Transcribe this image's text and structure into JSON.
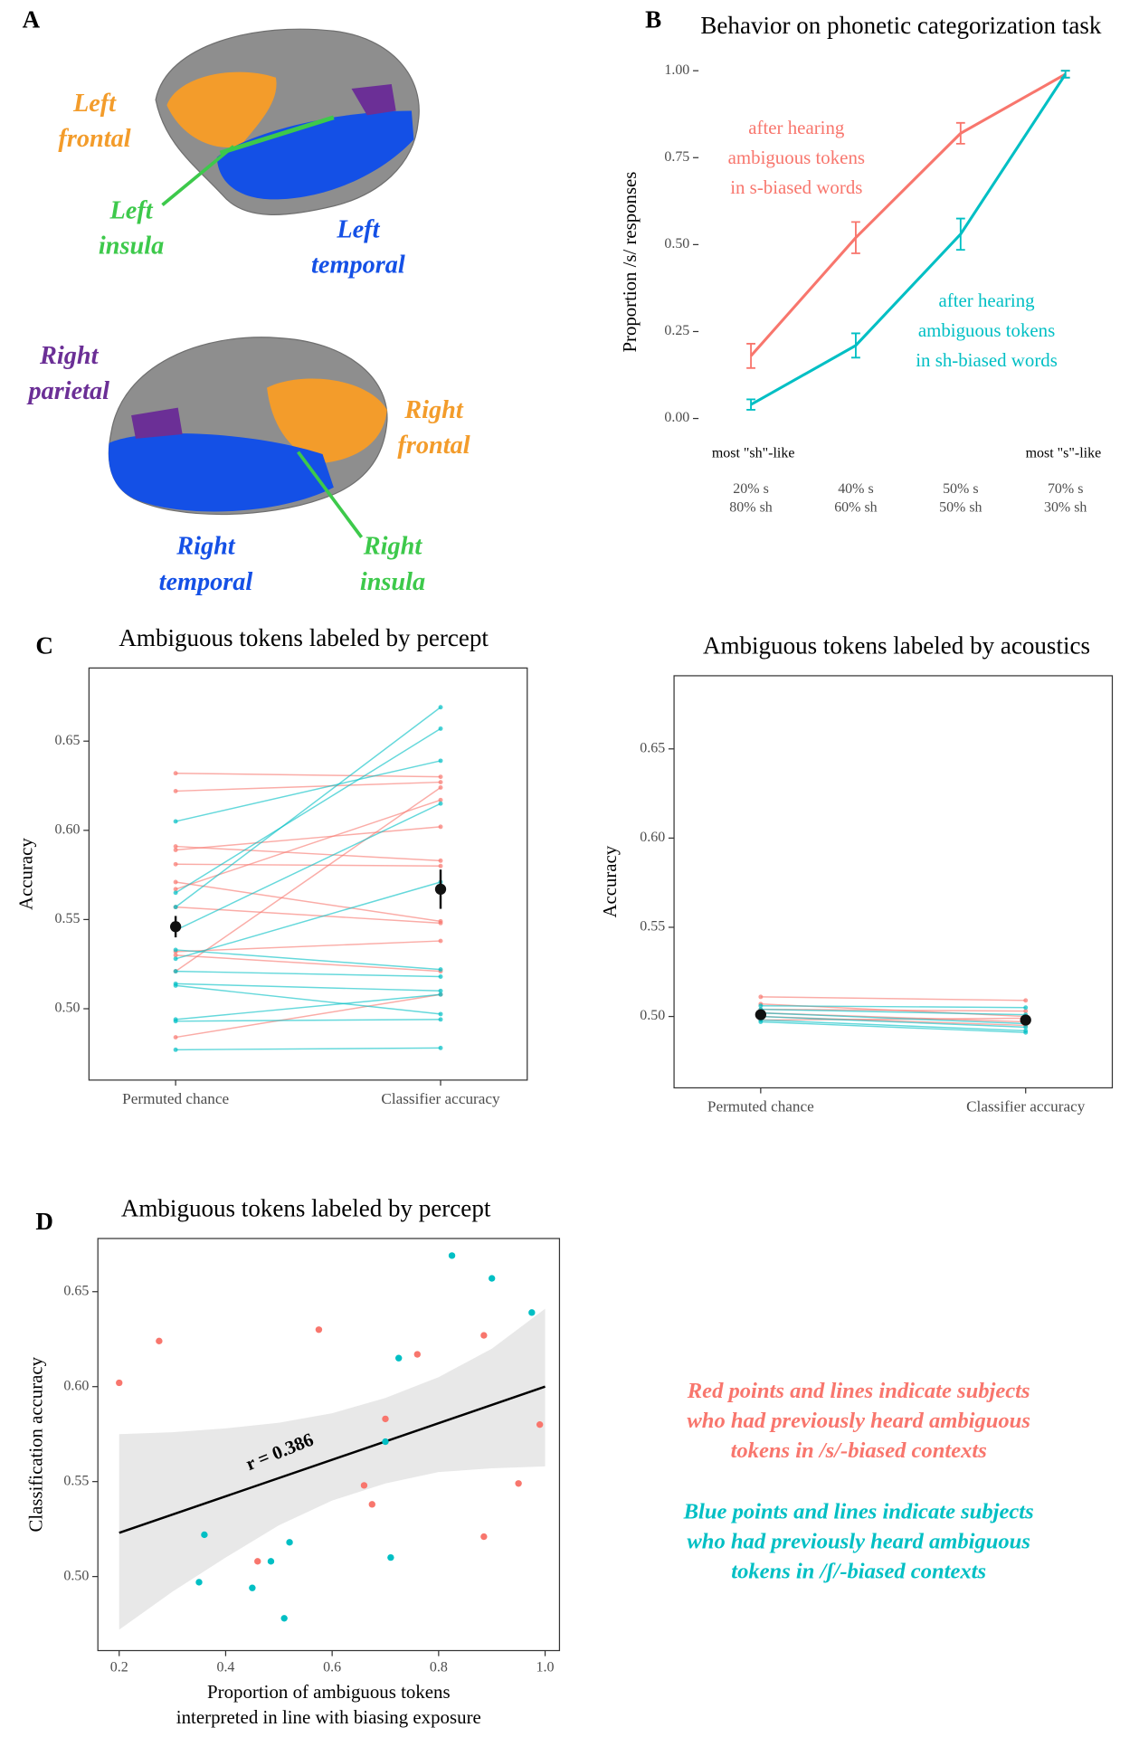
{
  "panel_labels": [
    "A",
    "B",
    "C",
    "D"
  ],
  "brain_labels": [
    {
      "lines": [
        "Left",
        "frontal"
      ],
      "color": "#f39c2b"
    },
    {
      "lines": [
        "Left",
        "insula"
      ],
      "color": "#3dc94b"
    },
    {
      "lines": [
        "Left",
        "temporal"
      ],
      "color": "#1450e6"
    },
    {
      "lines": [
        "Right",
        "parietal"
      ],
      "color": "#6b2f96"
    },
    {
      "lines": [
        "Right",
        "frontal"
      ],
      "color": "#f39c2b"
    },
    {
      "lines": [
        "Right",
        "temporal"
      ],
      "color": "#1450e6"
    },
    {
      "lines": [
        "Right",
        "insula"
      ],
      "color": "#3dc94b"
    }
  ],
  "chart_data": [
    {
      "type": "line",
      "title": "Behavior on phonetic categorization task",
      "y_label": "Proportion /s/ responses",
      "categories": [
        [
          "20% s",
          "80% sh"
        ],
        [
          "40% s",
          "60% sh"
        ],
        [
          "50% s",
          "50% sh"
        ],
        [
          "70% s",
          "30% sh"
        ]
      ],
      "series": [
        {
          "name": [
            "after hearing",
            "ambiguous tokens",
            "in s-biased words"
          ],
          "color": "#F8766D",
          "values": [
            0.18,
            0.52,
            0.82,
            0.99
          ],
          "errors": [
            0.035,
            0.045,
            0.03,
            0.01
          ]
        },
        {
          "name": [
            "after hearing",
            "ambiguous tokens",
            "in sh-biased words"
          ],
          "color": "#00BFC4",
          "values": [
            0.04,
            0.21,
            0.53,
            0.99
          ],
          "errors": [
            0.015,
            0.035,
            0.045,
            0.01
          ]
        }
      ],
      "annotations": [
        "most \"sh\"-like",
        "most \"s\"-like"
      ],
      "ylim": [
        -0.16,
        1.06
      ],
      "yticks": [
        {
          "value": 0,
          "label": "0.00"
        },
        {
          "value": 0.25,
          "label": "0.25"
        },
        {
          "value": 0.5,
          "label": "0.50"
        },
        {
          "value": 0.75,
          "label": "0.75"
        },
        {
          "value": 1,
          "label": "1.00"
        }
      ]
    },
    {
      "type": "slope",
      "title": "Ambiguous tokens labeled by percept",
      "y_label": "Accuracy",
      "categories": [
        "Permuted chance",
        "Classifier accuracy"
      ],
      "series": [
        {
          "color": "#F8766D",
          "chance": [
            0.632,
            0.622,
            0.591,
            0.589,
            0.581,
            0.571,
            0.567,
            0.557,
            0.532,
            0.53,
            0.521,
            0.484
          ],
          "classifier": [
            0.63,
            0.627,
            0.583,
            0.602,
            0.58,
            0.549,
            0.617,
            0.548,
            0.538,
            0.521,
            0.624,
            0.508
          ]
        },
        {
          "color": "#00BFC4",
          "chance": [
            0.605,
            0.565,
            0.557,
            0.544,
            0.528,
            0.533,
            0.521,
            0.514,
            0.513,
            0.494,
            0.493,
            0.477
          ],
          "classifier": [
            0.639,
            0.657,
            0.669,
            0.615,
            0.571,
            0.522,
            0.518,
            0.51,
            0.497,
            0.508,
            0.494,
            0.478
          ]
        }
      ],
      "mean": [
        0.546,
        0.567
      ],
      "mean_error": [
        0.006,
        0.011
      ],
      "ylim": [
        0.46,
        0.691
      ],
      "yticks": [
        {
          "value": 0.5,
          "label": "0.50"
        },
        0.55,
        {
          "value": 0.6,
          "label": "0.60"
        },
        0.65
      ]
    },
    {
      "type": "slope",
      "title": "Ambiguous tokens labeled by acoustics",
      "y_label": "Accuracy",
      "categories": [
        "Permuted chance",
        "Classifier accuracy"
      ],
      "series": [
        {
          "color": "#F8766D",
          "chance": [
            0.511,
            0.507,
            0.504,
            0.502,
            0.5,
            0.498
          ],
          "classifier": [
            0.509,
            0.5,
            0.503,
            0.497,
            0.495,
            0.499
          ]
        },
        {
          "color": "#00BFC4",
          "chance": [
            0.506,
            0.504,
            0.502,
            0.5,
            0.498,
            0.497
          ],
          "classifier": [
            0.505,
            0.501,
            0.496,
            0.494,
            0.492,
            0.491
          ]
        }
      ],
      "mean": [
        0.501,
        0.498
      ],
      "mean_error": [
        0.002,
        0.002
      ],
      "ylim": [
        0.46,
        0.691
      ],
      "yticks": [
        {
          "value": 0.5,
          "label": "0.50"
        },
        0.55,
        {
          "value": 0.6,
          "label": "0.60"
        },
        0.65
      ]
    },
    {
      "type": "scatter",
      "title": "Ambiguous tokens labeled by percept",
      "y_label": "Classification accuracy",
      "x_label": [
        "Proportion of ambiguous tokens",
        "interpreted in line with biasing exposure"
      ],
      "series": [
        {
          "color": "#F8766D",
          "x": [
            0.2,
            0.275,
            0.575,
            0.885,
            0.76,
            0.7,
            0.99,
            0.95,
            0.66,
            0.675,
            0.885,
            0.46
          ],
          "values": [
            0.602,
            0.624,
            0.63,
            0.627,
            0.617,
            0.583,
            0.58,
            0.549,
            0.548,
            0.538,
            0.521,
            0.508
          ]
        },
        {
          "color": "#00BFC4",
          "x": [
            0.825,
            0.9,
            0.975,
            0.725,
            0.7,
            0.36,
            0.52,
            0.485,
            0.71,
            0.35,
            0.45,
            0.51
          ],
          "values": [
            0.669,
            0.657,
            0.639,
            0.615,
            0.571,
            0.522,
            0.518,
            0.508,
            0.51,
            0.497,
            0.494,
            0.478
          ]
        }
      ],
      "fit": {
        "x": [
          0.2,
          1.0
        ],
        "values": [
          0.523,
          0.6
        ]
      },
      "band": {
        "x": [
          0.2,
          0.3,
          0.4,
          0.5,
          0.6,
          0.7,
          0.8,
          0.9,
          1.0
        ],
        "lower": [
          0.472,
          0.492,
          0.51,
          0.527,
          0.54,
          0.549,
          0.555,
          0.557,
          0.558
        ],
        "upper": [
          0.575,
          0.576,
          0.578,
          0.581,
          0.586,
          0.594,
          0.605,
          0.62,
          0.641
        ]
      },
      "annotation": "r = 0.386",
      "xlim": [
        0.16,
        1.027
      ],
      "xticks": [
        0.2,
        0.4,
        0.6,
        0.8,
        {
          "value": 1,
          "label": "1.0"
        }
      ],
      "ylim": [
        0.461,
        0.678
      ],
      "yticks": [
        {
          "value": 0.5,
          "label": "0.50"
        },
        0.55,
        {
          "value": 0.6,
          "label": "0.60"
        },
        0.65
      ]
    }
  ],
  "legend_note": [
    {
      "color": "#F8766D",
      "lines": [
        "Red points and lines indicate subjects",
        "who had previously heard ambiguous",
        "tokens in /s/-biased contexts"
      ]
    },
    {
      "color": "#00BFC4",
      "lines": [
        "Blue points and lines indicate subjects",
        "who had previously heard ambiguous",
        "tokens in /ʃ/-biased contexts"
      ]
    }
  ]
}
